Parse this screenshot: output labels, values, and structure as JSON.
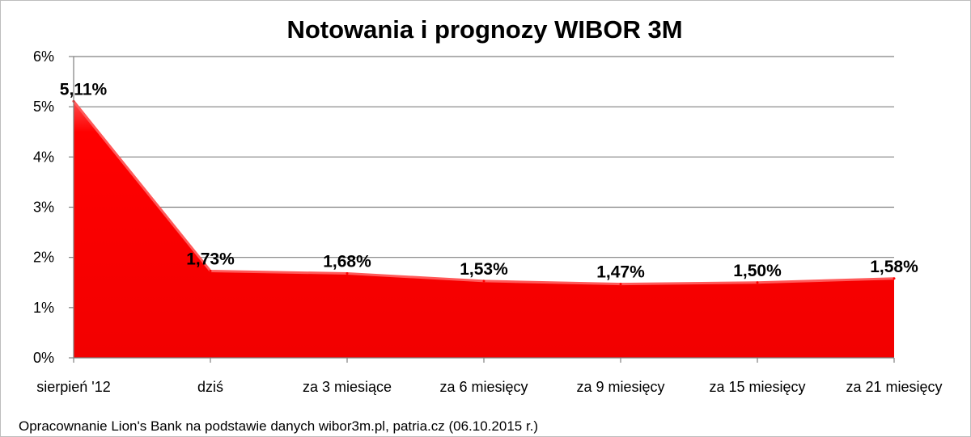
{
  "chart_data": {
    "type": "area",
    "title": "Notowania i prognozy WIBOR 3M",
    "categories": [
      "sierpień '12",
      "dziś",
      "za 3 miesiące",
      "za 6 miesięcy",
      "za 9 miesięcy",
      "za 15 miesięcy",
      "za 21 miesięcy"
    ],
    "values": [
      5.11,
      1.73,
      1.68,
      1.53,
      1.47,
      1.5,
      1.58
    ],
    "data_labels": [
      "5,11%",
      "1,73%",
      "1,68%",
      "1,53%",
      "1,47%",
      "1,50%",
      "1,58%"
    ],
    "yticks": [
      "0%",
      "1%",
      "2%",
      "3%",
      "4%",
      "5%",
      "6%"
    ],
    "ylim": [
      0,
      6
    ],
    "grid": true,
    "legend": "none",
    "fill_color": "#ff0000",
    "fill_highlight": "#ff5a5a",
    "gridline_color": "#808080"
  },
  "source_note": "Opracownanie Lion's Bank na podstawie danych wibor3m.pl, patria.cz (06.10.2015 r.)"
}
